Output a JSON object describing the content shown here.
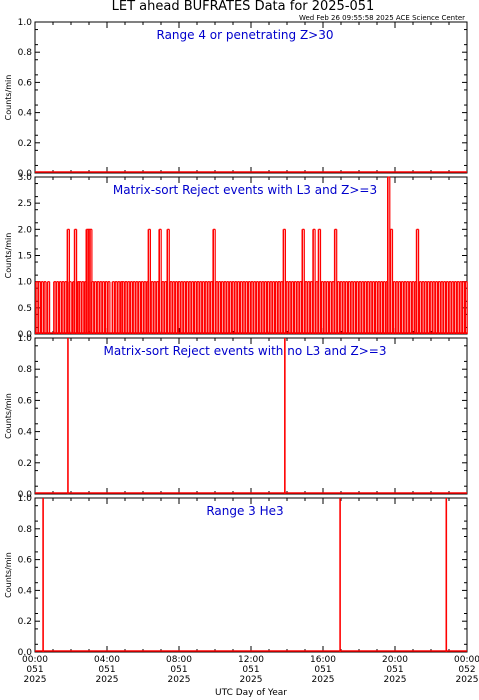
{
  "page": {
    "title": "LET ahead BUFRATES Data for 2025-051",
    "timestamp": "Wed Feb 26 09:55:58 2025 ACE Science Center",
    "xlabel": "UTC Day of Year",
    "x_ticks": [
      {
        "hour": 0,
        "time": "00:00",
        "doy": "051",
        "year": "2025"
      },
      {
        "hour": 4,
        "time": "04:00",
        "doy": "051",
        "year": "2025"
      },
      {
        "hour": 8,
        "time": "08:00",
        "doy": "051",
        "year": "2025"
      },
      {
        "hour": 12,
        "time": "12:00",
        "doy": "051",
        "year": "2025"
      },
      {
        "hour": 16,
        "time": "16:00",
        "doy": "051",
        "year": "2025"
      },
      {
        "hour": 20,
        "time": "20:00",
        "doy": "051",
        "year": "2025"
      },
      {
        "hour": 24,
        "time": "00:00",
        "doy": "052",
        "year": "2025"
      }
    ],
    "colors": {
      "data": "#ff0000",
      "panel_title": "#0000cc",
      "axes": "#000000"
    }
  },
  "chart_data": [
    {
      "type": "line",
      "title": "Range 4 or  penetrating Z>30",
      "ylabel": "Counts/min",
      "xlim": [
        0,
        24
      ],
      "ylim": [
        0,
        1.0
      ],
      "yticks": [
        "0.0",
        "0.2",
        "0.4",
        "0.6",
        "0.8",
        "1.0"
      ],
      "baseline": 0,
      "spikes": []
    },
    {
      "type": "line",
      "title": "Matrix-sort Reject events with L3 and Z>=3",
      "ylabel": "Counts/min",
      "xlim": [
        0,
        24
      ],
      "ylim": [
        0,
        3.0
      ],
      "yticks": [
        "0.0",
        "0.5",
        "1.0",
        "1.5",
        "2.0",
        "2.5",
        "3.0"
      ],
      "baseline": 0,
      "spikes": [
        [
          0.05,
          1
        ],
        [
          0.2,
          1
        ],
        [
          0.35,
          1
        ],
        [
          0.5,
          1
        ],
        [
          0.7,
          1
        ],
        [
          1.05,
          1
        ],
        [
          1.2,
          1
        ],
        [
          1.35,
          1
        ],
        [
          1.5,
          1
        ],
        [
          1.65,
          1
        ],
        [
          1.8,
          2
        ],
        [
          1.9,
          1
        ],
        [
          2.1,
          1
        ],
        [
          2.2,
          2
        ],
        [
          2.35,
          1
        ],
        [
          2.45,
          1
        ],
        [
          2.6,
          1
        ],
        [
          2.75,
          1
        ],
        [
          2.85,
          2
        ],
        [
          2.95,
          2
        ],
        [
          3.05,
          2
        ],
        [
          3.15,
          1
        ],
        [
          3.3,
          1
        ],
        [
          3.45,
          1
        ],
        [
          3.6,
          1
        ],
        [
          3.75,
          1
        ],
        [
          3.9,
          1
        ],
        [
          4.05,
          1
        ],
        [
          4.3,
          1
        ],
        [
          4.45,
          1
        ],
        [
          4.6,
          1
        ],
        [
          4.75,
          1
        ],
        [
          4.85,
          1
        ],
        [
          5.0,
          1
        ],
        [
          5.15,
          1
        ],
        [
          5.3,
          1
        ],
        [
          5.45,
          1
        ],
        [
          5.6,
          1
        ],
        [
          5.75,
          1
        ],
        [
          5.9,
          1
        ],
        [
          6.05,
          1
        ],
        [
          6.2,
          1
        ],
        [
          6.3,
          2
        ],
        [
          6.45,
          1
        ],
        [
          6.6,
          1
        ],
        [
          6.75,
          1
        ],
        [
          6.9,
          2
        ],
        [
          7.05,
          1
        ],
        [
          7.2,
          1
        ],
        [
          7.35,
          2
        ],
        [
          7.5,
          1
        ],
        [
          7.65,
          1
        ],
        [
          7.8,
          1
        ],
        [
          7.95,
          1
        ],
        [
          8.1,
          1
        ],
        [
          8.25,
          1
        ],
        [
          8.4,
          1
        ],
        [
          8.55,
          1
        ],
        [
          8.7,
          1
        ],
        [
          8.85,
          1
        ],
        [
          9.0,
          1
        ],
        [
          9.15,
          1
        ],
        [
          9.3,
          1
        ],
        [
          9.45,
          1
        ],
        [
          9.6,
          1
        ],
        [
          9.75,
          1
        ],
        [
          9.9,
          2
        ],
        [
          10.05,
          1
        ],
        [
          10.2,
          1
        ],
        [
          10.35,
          1
        ],
        [
          10.5,
          1
        ],
        [
          10.65,
          1
        ],
        [
          10.8,
          1
        ],
        [
          10.95,
          1
        ],
        [
          11.1,
          1
        ],
        [
          11.25,
          1
        ],
        [
          11.4,
          1
        ],
        [
          11.55,
          1
        ],
        [
          11.7,
          1
        ],
        [
          11.85,
          1
        ],
        [
          12.0,
          1
        ],
        [
          12.15,
          1
        ],
        [
          12.3,
          1
        ],
        [
          12.45,
          1
        ],
        [
          12.6,
          1
        ],
        [
          12.75,
          1
        ],
        [
          12.9,
          1
        ],
        [
          13.05,
          1
        ],
        [
          13.2,
          1
        ],
        [
          13.35,
          1
        ],
        [
          13.5,
          1
        ],
        [
          13.65,
          1
        ],
        [
          13.8,
          2
        ],
        [
          13.95,
          1
        ],
        [
          14.1,
          1
        ],
        [
          14.25,
          1
        ],
        [
          14.4,
          1
        ],
        [
          14.55,
          1
        ],
        [
          14.7,
          1
        ],
        [
          14.85,
          2
        ],
        [
          15.0,
          1
        ],
        [
          15.15,
          1
        ],
        [
          15.3,
          1
        ],
        [
          15.45,
          2
        ],
        [
          15.6,
          1
        ],
        [
          15.75,
          2
        ],
        [
          15.9,
          1
        ],
        [
          16.05,
          1
        ],
        [
          16.2,
          1
        ],
        [
          16.35,
          1
        ],
        [
          16.5,
          1
        ],
        [
          16.65,
          2
        ],
        [
          16.8,
          1
        ],
        [
          16.95,
          1
        ],
        [
          17.1,
          1
        ],
        [
          17.25,
          1
        ],
        [
          17.4,
          1
        ],
        [
          17.55,
          1
        ],
        [
          17.7,
          1
        ],
        [
          17.85,
          1
        ],
        [
          18.0,
          1
        ],
        [
          18.15,
          1
        ],
        [
          18.3,
          1
        ],
        [
          18.45,
          1
        ],
        [
          18.6,
          1
        ],
        [
          18.75,
          1
        ],
        [
          18.9,
          1
        ],
        [
          19.05,
          1
        ],
        [
          19.2,
          1
        ],
        [
          19.35,
          1
        ],
        [
          19.5,
          1
        ],
        [
          19.6,
          3
        ],
        [
          19.75,
          2
        ],
        [
          19.9,
          1
        ],
        [
          20.05,
          1
        ],
        [
          20.2,
          1
        ],
        [
          20.35,
          1
        ],
        [
          20.5,
          1
        ],
        [
          20.65,
          1
        ],
        [
          20.8,
          1
        ],
        [
          20.95,
          1
        ],
        [
          21.1,
          1
        ],
        [
          21.2,
          2
        ],
        [
          21.35,
          1
        ],
        [
          21.5,
          1
        ],
        [
          21.65,
          1
        ],
        [
          21.8,
          1
        ],
        [
          21.95,
          1
        ],
        [
          22.1,
          1
        ],
        [
          22.25,
          1
        ],
        [
          22.4,
          1
        ],
        [
          22.55,
          1
        ],
        [
          22.7,
          1
        ],
        [
          22.85,
          1
        ],
        [
          23.0,
          1
        ],
        [
          23.15,
          1
        ],
        [
          23.3,
          1
        ],
        [
          23.45,
          1
        ],
        [
          23.6,
          1
        ],
        [
          23.75,
          1
        ],
        [
          23.9,
          1
        ]
      ]
    },
    {
      "type": "line",
      "title": "Matrix-sort Reject events with no L3 and Z>=3",
      "ylabel": "Counts/min",
      "xlim": [
        0,
        24
      ],
      "ylim": [
        0,
        1.0
      ],
      "yticks": [
        "0.0",
        "0.2",
        "0.4",
        "0.6",
        "0.8",
        "1.0"
      ],
      "baseline": 0,
      "spikes": [
        [
          1.83,
          1
        ],
        [
          13.88,
          1
        ]
      ]
    },
    {
      "type": "line",
      "title": "Range 3 He3",
      "ylabel": "Counts/min",
      "xlim": [
        0,
        24
      ],
      "ylim": [
        0,
        1.0
      ],
      "yticks": [
        "0.0",
        "0.2",
        "0.4",
        "0.6",
        "0.8",
        "1.0"
      ],
      "baseline": 0,
      "spikes": [
        [
          0.45,
          1
        ],
        [
          16.95,
          1
        ],
        [
          22.85,
          1
        ]
      ]
    }
  ]
}
